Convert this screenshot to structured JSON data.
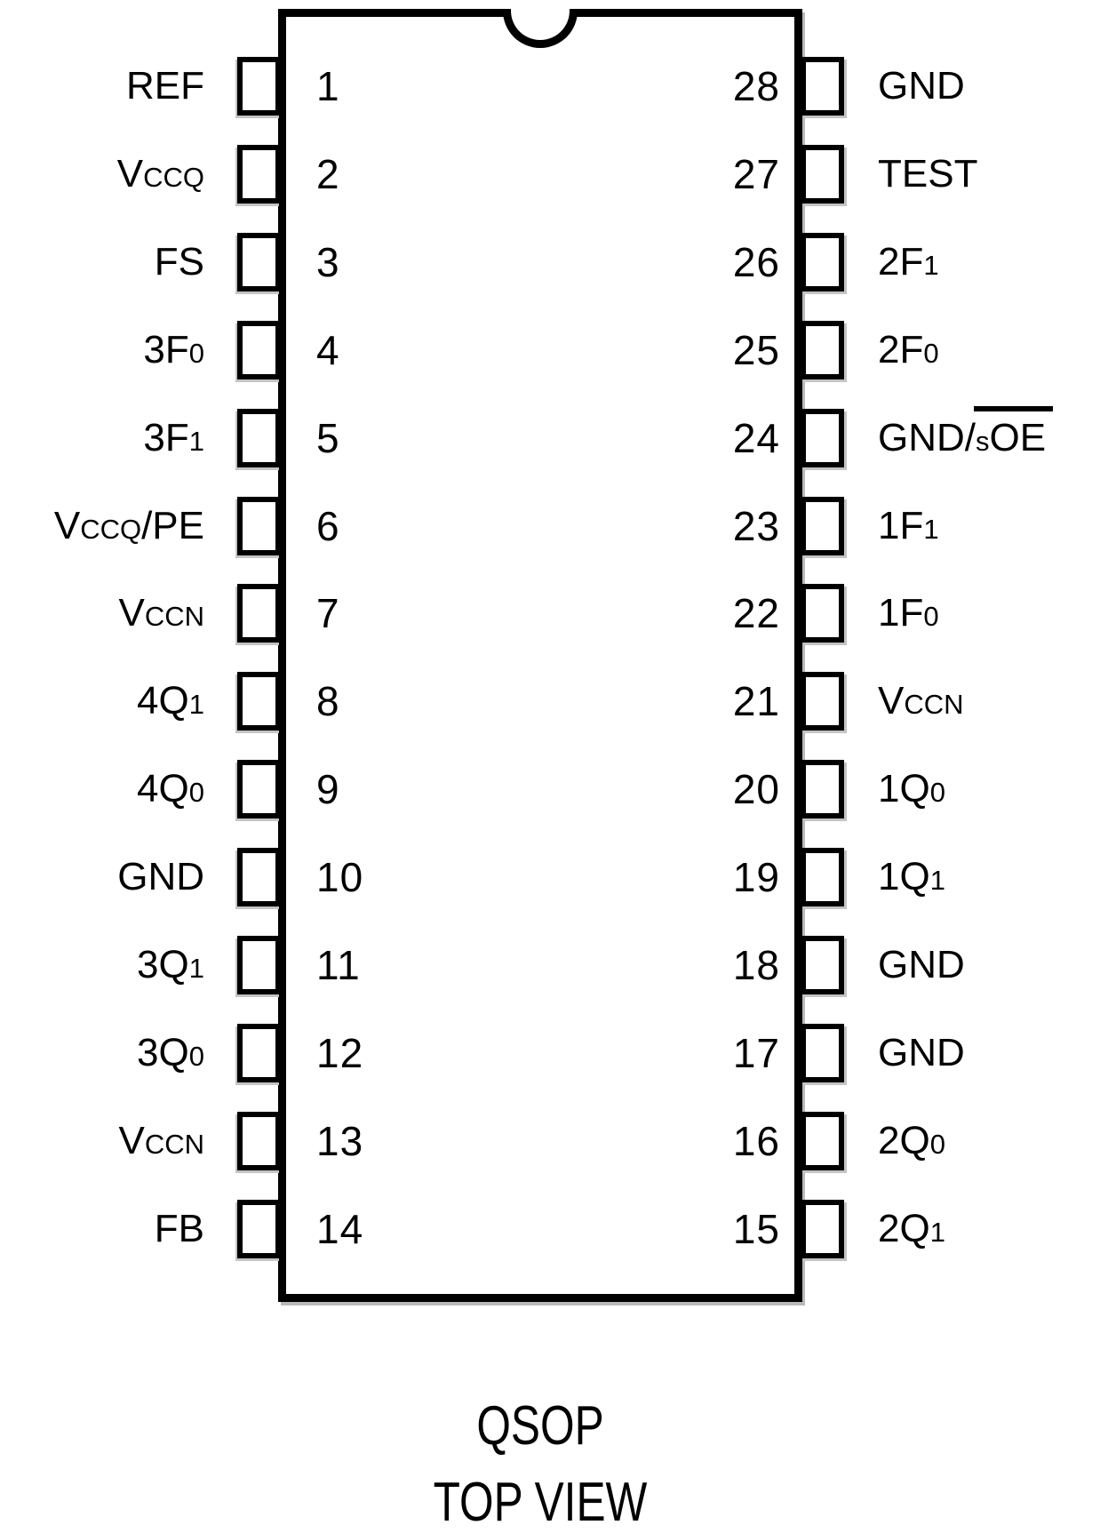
{
  "diagram": {
    "type": "ic-pinout",
    "pin_count": 28,
    "colors": {
      "line": "#000000",
      "background": "#ffffff",
      "shadow": "#b9b9b9"
    }
  },
  "footer": {
    "package": "QSOP",
    "view": "TOP VIEW"
  },
  "pins": {
    "left": [
      {
        "num": "1",
        "label": "REF",
        "parts": [
          {
            "t": "REF"
          }
        ]
      },
      {
        "num": "2",
        "label": "VCCQ",
        "parts": [
          {
            "t": "V"
          },
          {
            "t": "CCQ",
            "small": true
          }
        ]
      },
      {
        "num": "3",
        "label": "FS",
        "parts": [
          {
            "t": "FS"
          }
        ]
      },
      {
        "num": "4",
        "label": "3F0",
        "parts": [
          {
            "t": "3F"
          },
          {
            "t": "0",
            "small": true
          }
        ]
      },
      {
        "num": "5",
        "label": "3F1",
        "parts": [
          {
            "t": "3F"
          },
          {
            "t": "1",
            "small": true
          }
        ]
      },
      {
        "num": "6",
        "label": "VCCQ/PE",
        "parts": [
          {
            "t": "V"
          },
          {
            "t": "CCQ",
            "small": true
          },
          {
            "t": "/PE"
          }
        ]
      },
      {
        "num": "7",
        "label": "VCCN",
        "parts": [
          {
            "t": "V"
          },
          {
            "t": "CCN",
            "small": true
          }
        ]
      },
      {
        "num": "8",
        "label": "4Q1",
        "parts": [
          {
            "t": "4Q"
          },
          {
            "t": "1",
            "small": true
          }
        ]
      },
      {
        "num": "9",
        "label": "4Q0",
        "parts": [
          {
            "t": "4Q"
          },
          {
            "t": "0",
            "small": true
          }
        ]
      },
      {
        "num": "10",
        "label": "GND",
        "parts": [
          {
            "t": "GND"
          }
        ]
      },
      {
        "num": "11",
        "label": "3Q1",
        "parts": [
          {
            "t": "3Q"
          },
          {
            "t": "1",
            "small": true
          }
        ]
      },
      {
        "num": "12",
        "label": "3Q0",
        "parts": [
          {
            "t": "3Q"
          },
          {
            "t": "0",
            "small": true
          }
        ]
      },
      {
        "num": "13",
        "label": "VCCN",
        "parts": [
          {
            "t": "V"
          },
          {
            "t": "CCN",
            "small": true
          }
        ]
      },
      {
        "num": "14",
        "label": "FB",
        "parts": [
          {
            "t": "FB"
          }
        ]
      }
    ],
    "right": [
      {
        "num": "28",
        "label": "GND",
        "parts": [
          {
            "t": "GND"
          }
        ]
      },
      {
        "num": "27",
        "label": "TEST",
        "parts": [
          {
            "t": "TEST"
          }
        ]
      },
      {
        "num": "26",
        "label": "2F1",
        "parts": [
          {
            "t": "2F"
          },
          {
            "t": "1",
            "small": true
          }
        ]
      },
      {
        "num": "25",
        "label": "2F0",
        "parts": [
          {
            "t": "2F"
          },
          {
            "t": "0",
            "small": true
          }
        ]
      },
      {
        "num": "24",
        "label": "GND/sOE",
        "parts": [
          {
            "t": "GND/"
          },
          {
            "t": "s",
            "small": true,
            "overline": true
          },
          {
            "t": "OE",
            "overline": true
          }
        ]
      },
      {
        "num": "23",
        "label": "1F1",
        "parts": [
          {
            "t": "1F"
          },
          {
            "t": "1",
            "small": true
          }
        ]
      },
      {
        "num": "22",
        "label": "1F0",
        "parts": [
          {
            "t": "1F"
          },
          {
            "t": "0",
            "small": true
          }
        ]
      },
      {
        "num": "21",
        "label": "VCCN",
        "parts": [
          {
            "t": "V"
          },
          {
            "t": "CCN",
            "small": true
          }
        ]
      },
      {
        "num": "20",
        "label": "1Q0",
        "parts": [
          {
            "t": "1Q"
          },
          {
            "t": "0",
            "small": true
          }
        ]
      },
      {
        "num": "19",
        "label": "1Q1",
        "parts": [
          {
            "t": "1Q"
          },
          {
            "t": "1",
            "small": true
          }
        ]
      },
      {
        "num": "18",
        "label": "GND",
        "parts": [
          {
            "t": "GND"
          }
        ]
      },
      {
        "num": "17",
        "label": "GND",
        "parts": [
          {
            "t": "GND"
          }
        ]
      },
      {
        "num": "16",
        "label": "2Q0",
        "parts": [
          {
            "t": "2Q"
          },
          {
            "t": "0",
            "small": true
          }
        ]
      },
      {
        "num": "15",
        "label": "2Q1",
        "parts": [
          {
            "t": "2Q"
          },
          {
            "t": "1",
            "small": true
          }
        ]
      }
    ]
  }
}
